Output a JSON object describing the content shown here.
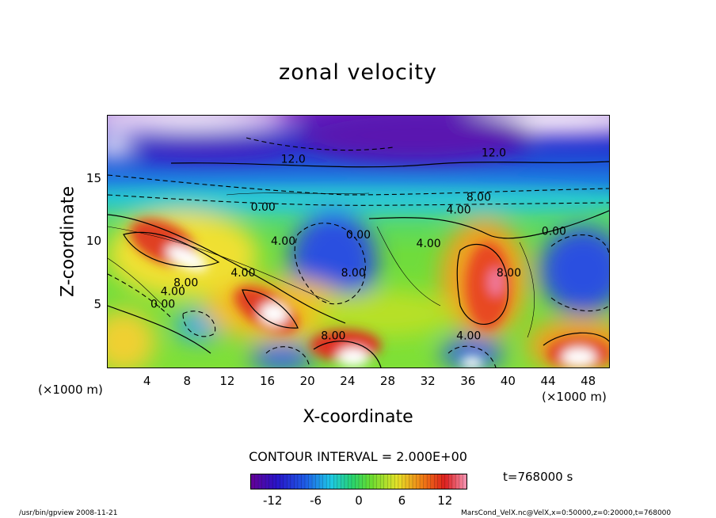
{
  "chart_data": {
    "type": "heatmap",
    "title": "zonal velocity",
    "xlabel": "X-coordinate",
    "ylabel": "Z-coordinate",
    "x_unit": "(×1000 m)",
    "xlim": [
      0,
      50
    ],
    "ylim": [
      0,
      20
    ],
    "x_ticks": [
      "4",
      "8",
      "12",
      "16",
      "20",
      "24",
      "28",
      "32",
      "36",
      "40",
      "44",
      "48"
    ],
    "y_ticks": [
      "5",
      "10",
      "15"
    ],
    "contour_interval_text": "CONTOUR INTERVAL = 2.000E+00",
    "contour_labels": [
      {
        "text": "12.0",
        "x": 18.5,
        "z": 16.5
      },
      {
        "text": "12.0",
        "x": 38.5,
        "z": 17.0
      },
      {
        "text": "0.00",
        "x": 15.5,
        "z": 12.7
      },
      {
        "text": "8.00",
        "x": 37.0,
        "z": 13.5
      },
      {
        "text": "4.00",
        "x": 35.0,
        "z": 12.5
      },
      {
        "text": "0.00",
        "x": 44.5,
        "z": 10.8
      },
      {
        "text": "4.00",
        "x": 17.5,
        "z": 10.0
      },
      {
        "text": "0.00",
        "x": 25.0,
        "z": 10.5
      },
      {
        "text": "4.00",
        "x": 32.0,
        "z": 9.8
      },
      {
        "text": "8.00",
        "x": 24.5,
        "z": 7.5
      },
      {
        "text": "8.00",
        "x": 40.0,
        "z": 7.5
      },
      {
        "text": "4.00",
        "x": 13.5,
        "z": 7.5
      },
      {
        "text": "8.00",
        "x": 7.8,
        "z": 6.7
      },
      {
        "text": "4.00",
        "x": 6.5,
        "z": 6.0
      },
      {
        "text": "0.00",
        "x": 5.5,
        "z": 5.0
      },
      {
        "text": "8.00",
        "x": 22.5,
        "z": 2.5
      },
      {
        "text": "4.00",
        "x": 36.0,
        "z": 2.5
      }
    ],
    "colorbar": {
      "range": [
        -15,
        15
      ],
      "tick_labels": [
        "-12",
        "-6",
        "0",
        "6",
        "12"
      ],
      "tick_values": [
        -12,
        -6,
        0,
        6,
        12
      ]
    },
    "time_label": "t=768000 s"
  },
  "footer": {
    "left": "/usr/bin/gpview   2008-11-21",
    "right": "MarsCond_VelX.nc@VelX,x=0:50000,z=0:20000,t=768000"
  }
}
